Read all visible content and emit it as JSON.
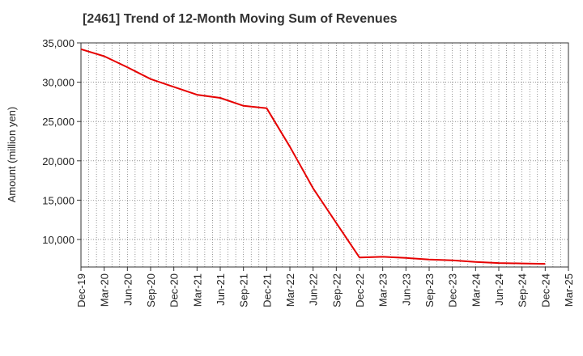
{
  "chart_data": {
    "type": "line",
    "title": "[2461]  Trend of 12-Month Moving Sum of Revenues",
    "ylabel": "Amount (million yen)",
    "xlabel": "",
    "ylim": [
      6500,
      35000
    ],
    "yticks": [
      10000,
      15000,
      20000,
      25000,
      30000,
      35000
    ],
    "ytick_labels": [
      "10,000",
      "15,000",
      "20,000",
      "25,000",
      "30,000",
      "35,000"
    ],
    "xtick_labels": [
      "Dec-19",
      "Mar-20",
      "Jun-20",
      "Sep-20",
      "Dec-20",
      "Mar-21",
      "Jun-21",
      "Sep-21",
      "Dec-21",
      "Mar-22",
      "Jun-22",
      "Sep-22",
      "Dec-22",
      "Mar-23",
      "Jun-23",
      "Sep-23",
      "Dec-23",
      "Mar-24",
      "Jun-24",
      "Sep-24",
      "Dec-24",
      "Mar-25"
    ],
    "grid": true,
    "series": [
      {
        "color": "#e60000",
        "x": [
          "Dec-19",
          "Mar-20",
          "Jun-20",
          "Sep-20",
          "Dec-20",
          "Mar-21",
          "Jun-21",
          "Sep-21",
          "Dec-21",
          "Mar-22",
          "Jun-22",
          "Sep-22",
          "Dec-22",
          "Mar-23",
          "Jun-23",
          "Sep-23",
          "Dec-23",
          "Mar-24",
          "Jun-24",
          "Sep-24",
          "Dec-24"
        ],
        "values": [
          34200,
          33300,
          31900,
          30400,
          29400,
          28400,
          28000,
          27000,
          26700,
          21800,
          16500,
          12100,
          7700,
          7800,
          7650,
          7450,
          7350,
          7150,
          7000,
          6950,
          6900
        ]
      }
    ]
  }
}
